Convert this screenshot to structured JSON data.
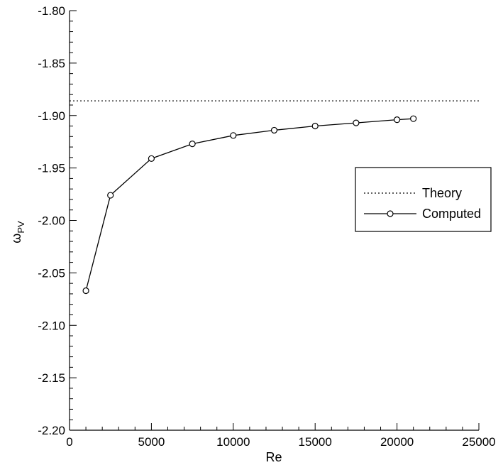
{
  "chart_data": {
    "type": "line",
    "xlabel": "Re",
    "ylabel": {
      "base": "ω",
      "sub": "PV"
    },
    "xlim": [
      0,
      25000
    ],
    "ylim": [
      -2.2,
      -1.8
    ],
    "x_ticks": [
      "0",
      "5000",
      "10000",
      "15000",
      "20000",
      "25000"
    ],
    "y_ticks": [
      "-1.80",
      "-1.85",
      "-1.90",
      "-1.95",
      "-2.00",
      "-2.05",
      "-2.10",
      "-2.15",
      "-2.20"
    ],
    "x_tick_values": [
      0,
      5000,
      10000,
      15000,
      20000,
      25000
    ],
    "y_tick_values": [
      -1.8,
      -1.85,
      -1.9,
      -1.95,
      -2.0,
      -2.05,
      -2.1,
      -2.15,
      -2.2
    ],
    "grid": false,
    "legend_position": "right-middle",
    "series": [
      {
        "name": "Theory",
        "style": "dotted",
        "color": "#000000",
        "x": [
          0,
          25000
        ],
        "y": [
          -1.886,
          -1.886
        ]
      },
      {
        "name": "Computed",
        "style": "solid-circle-markers",
        "color": "#000000",
        "x": [
          1000,
          2500,
          5000,
          7500,
          10000,
          12500,
          15000,
          17500,
          20000,
          21000
        ],
        "y": [
          -2.067,
          -1.976,
          -1.941,
          -1.927,
          -1.919,
          -1.914,
          -1.91,
          -1.907,
          -1.904,
          -1.903
        ]
      }
    ]
  }
}
